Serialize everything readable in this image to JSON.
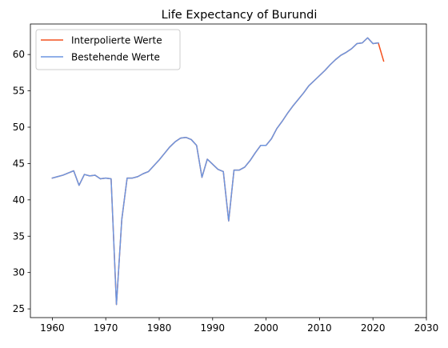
{
  "chart_data": {
    "type": "line",
    "title": "Life Expectancy of Burundi",
    "xlabel": "",
    "ylabel": "",
    "xlim": [
      1955.9,
      2030
    ],
    "ylim": [
      23.8,
      64.2
    ],
    "xticks": [
      1960,
      1970,
      1980,
      1990,
      2000,
      2010,
      2020,
      2030
    ],
    "yticks": [
      25,
      30,
      35,
      40,
      45,
      50,
      55,
      60
    ],
    "grid": false,
    "legend_position": "top-left",
    "series": [
      {
        "name": "Interpolierte Werte",
        "color": "#f4511e",
        "x": [
          1960,
          1961,
          1962,
          1963,
          1964,
          1965,
          1966,
          1967,
          1968,
          1969,
          1970,
          1971,
          1972,
          1973,
          1974,
          1975,
          1976,
          1977,
          1978,
          1979,
          1980,
          1981,
          1982,
          1983,
          1984,
          1985,
          1986,
          1987,
          1988,
          1989,
          1990,
          1991,
          1992,
          1993,
          1994,
          1995,
          1996,
          1997,
          1998,
          1999,
          2000,
          2001,
          2002,
          2003,
          2004,
          2005,
          2006,
          2007,
          2008,
          2009,
          2010,
          2011,
          2012,
          2013,
          2014,
          2015,
          2016,
          2017,
          2018,
          2019,
          2020,
          2021,
          2022
        ],
        "values": [
          43.0,
          43.2,
          43.4,
          43.7,
          44.0,
          42.0,
          43.5,
          43.3,
          43.4,
          42.9,
          43.0,
          42.9,
          25.6,
          37.3,
          43.0,
          43.0,
          43.2,
          43.6,
          43.9,
          44.7,
          45.5,
          46.4,
          47.3,
          48.0,
          48.5,
          48.6,
          48.3,
          47.5,
          43.1,
          45.6,
          44.9,
          44.2,
          43.9,
          37.1,
          44.1,
          44.1,
          44.5,
          45.4,
          46.5,
          47.5,
          47.5,
          48.4,
          49.8,
          50.8,
          51.9,
          52.9,
          53.8,
          54.7,
          55.7,
          56.4,
          57.1,
          57.8,
          58.6,
          59.3,
          59.9,
          60.3,
          60.8,
          61.5,
          61.6,
          62.3,
          61.5,
          61.6,
          59.1
        ]
      },
      {
        "name": "Bestehende Werte",
        "color": "#6c96e0",
        "x": [
          1960,
          1961,
          1962,
          1963,
          1964,
          1965,
          1966,
          1967,
          1968,
          1969,
          1970,
          1971,
          1972,
          1973,
          1974,
          1975,
          1976,
          1977,
          1978,
          1979,
          1980,
          1981,
          1982,
          1983,
          1984,
          1985,
          1986,
          1987,
          1988,
          1989,
          1990,
          1991,
          1992,
          1993,
          1994,
          1995,
          1996,
          1997,
          1998,
          1999,
          2000,
          2001,
          2002,
          2003,
          2004,
          2005,
          2006,
          2007,
          2008,
          2009,
          2010,
          2011,
          2012,
          2013,
          2014,
          2015,
          2016,
          2017,
          2018,
          2019,
          2020,
          2021
        ],
        "values": [
          43.0,
          43.2,
          43.4,
          43.7,
          44.0,
          42.0,
          43.5,
          43.3,
          43.4,
          42.9,
          43.0,
          42.9,
          25.6,
          37.3,
          43.0,
          43.0,
          43.2,
          43.6,
          43.9,
          44.7,
          45.5,
          46.4,
          47.3,
          48.0,
          48.5,
          48.6,
          48.3,
          47.5,
          43.1,
          45.6,
          44.9,
          44.2,
          43.9,
          37.1,
          44.1,
          44.1,
          44.5,
          45.4,
          46.5,
          47.5,
          47.5,
          48.4,
          49.8,
          50.8,
          51.9,
          52.9,
          53.8,
          54.7,
          55.7,
          56.4,
          57.1,
          57.8,
          58.6,
          59.3,
          59.9,
          60.3,
          60.8,
          61.5,
          61.6,
          62.3,
          61.5,
          61.6
        ]
      }
    ]
  }
}
